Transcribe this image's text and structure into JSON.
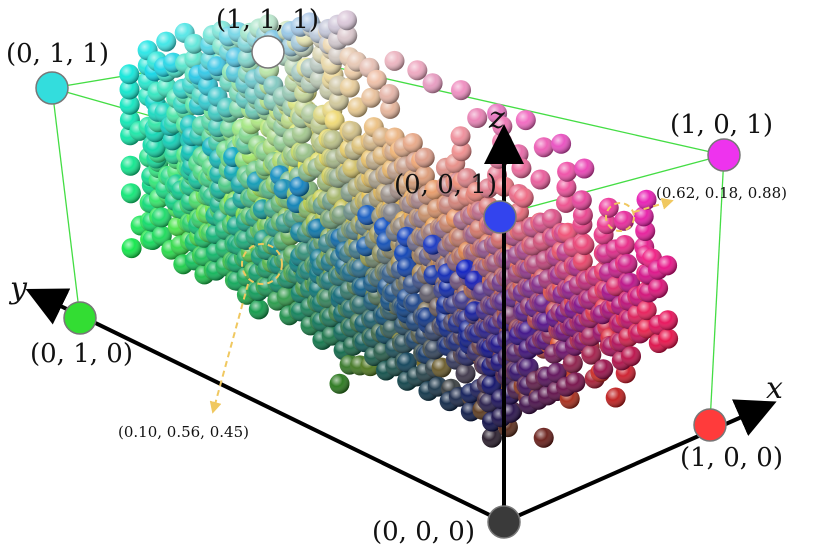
{
  "axes": {
    "x": "x",
    "y": "y",
    "z": "z"
  },
  "corners": [
    {
      "id": "000",
      "label": "(0, 0, 0)",
      "color": "#3a3a3a"
    },
    {
      "id": "100",
      "label": "(1, 0, 0)",
      "color": "#ff3b3b"
    },
    {
      "id": "010",
      "label": "(0, 1, 0)",
      "color": "#33dd33"
    },
    {
      "id": "001",
      "label": "(0, 0, 1)",
      "color": "#3344ee"
    },
    {
      "id": "110",
      "label": "",
      "color": "#e6e600"
    },
    {
      "id": "101",
      "label": "(1, 0, 1)",
      "color": "#ee33ee"
    },
    {
      "id": "011",
      "label": "(0, 1, 1)",
      "color": "#33dddd"
    },
    {
      "id": "111",
      "label": "(1, 1, 1)",
      "color": "#ffffff"
    }
  ],
  "annotations": [
    {
      "label": "(0.62, 0.18, 0.88)"
    },
    {
      "label": "(0.10, 0.56, 0.45)"
    }
  ],
  "colors": {
    "cube_edge": "#44dd44",
    "axis": "#000000",
    "annotation": "#f0c860"
  }
}
